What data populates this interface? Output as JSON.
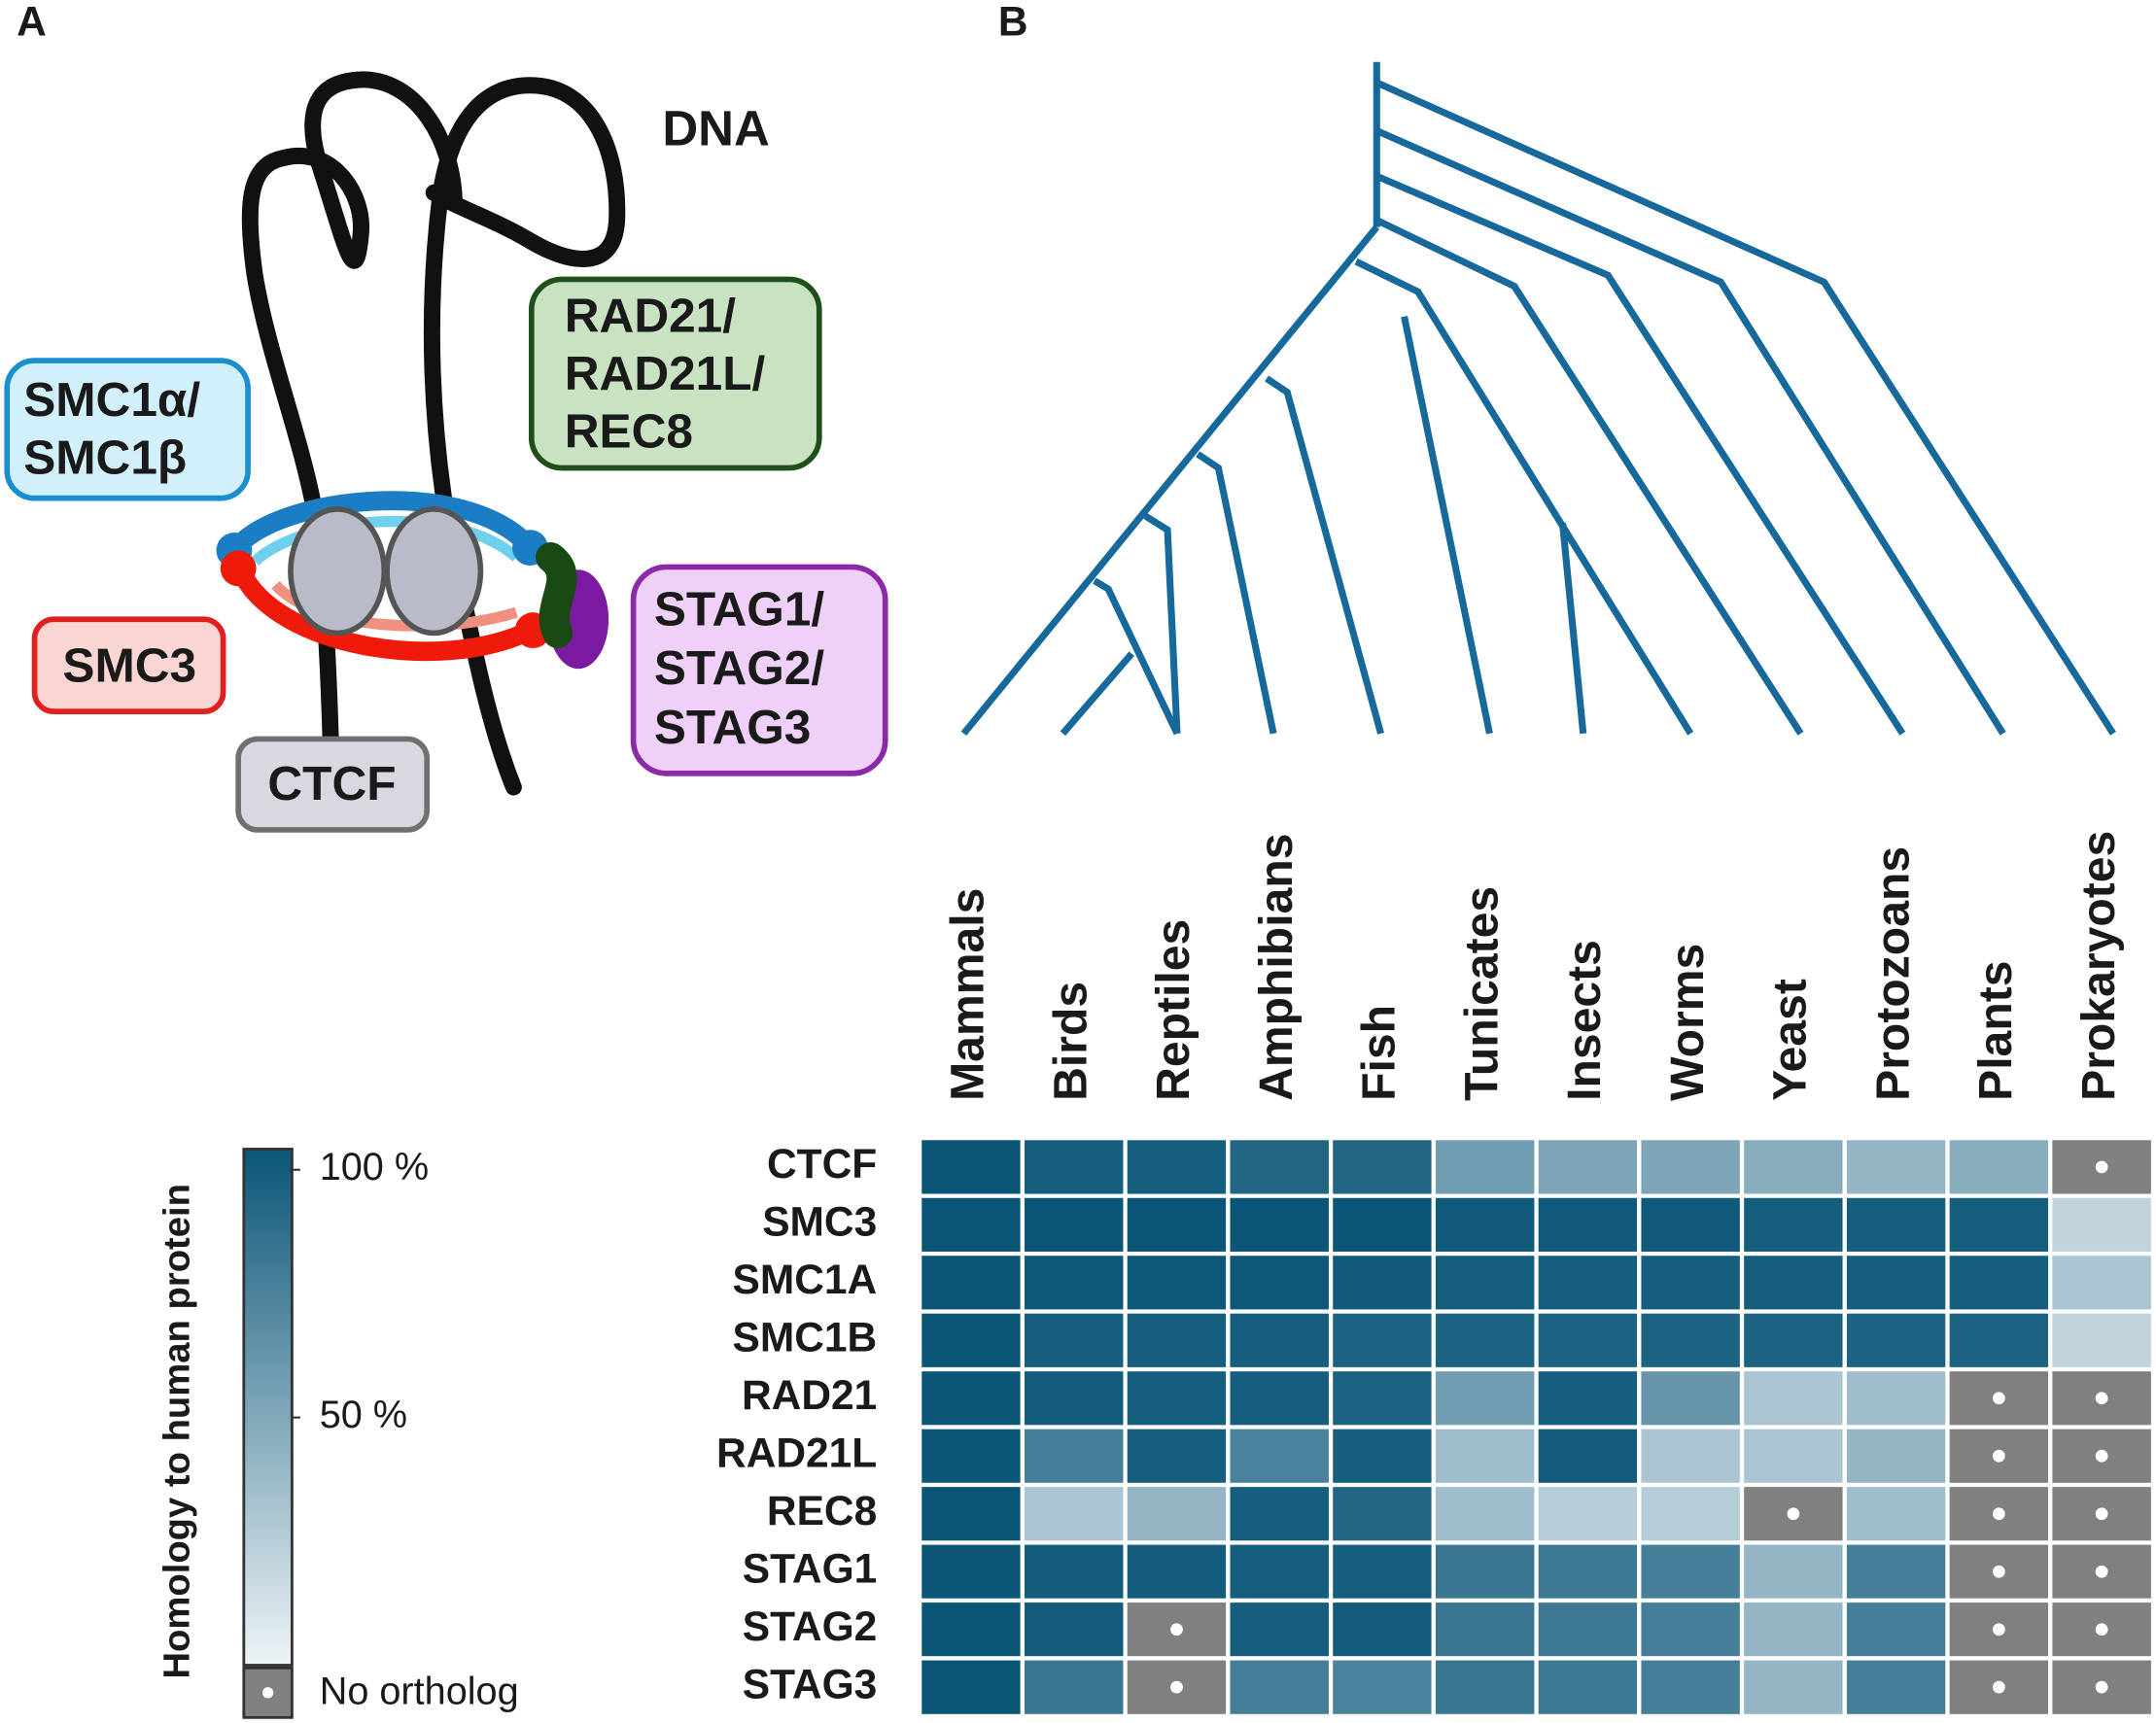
{
  "panel_labels": [
    "A",
    "B"
  ],
  "panel_a": {
    "dna": "DNA",
    "rad21": [
      "RAD21/",
      "RAD21L/",
      "REC8"
    ],
    "smc1": [
      "SMC1α/",
      "SMC1β"
    ],
    "smc3": "SMC3",
    "ctcf": "CTCF",
    "stag": [
      "STAG1/",
      "STAG2/",
      "STAG3"
    ]
  },
  "chart_data": {
    "type": "heatmap",
    "columns": [
      "Mammals",
      "Birds",
      "Reptiles",
      "Amphibians",
      "Fish",
      "Tunicates",
      "Insects",
      "Worms",
      "Yeast",
      "Protozoans",
      "Plants",
      "Prokaryotes"
    ],
    "rows": [
      "CTCF",
      "SMC3",
      "SMC1A",
      "SMC1B",
      "RAD21",
      "RAD21L",
      "REC8",
      "STAG1",
      "STAG2",
      "STAG3"
    ],
    "values": [
      [
        100,
        95,
        95,
        90,
        90,
        55,
        50,
        50,
        45,
        40,
        45,
        null
      ],
      [
        100,
        100,
        100,
        100,
        100,
        98,
        98,
        98,
        95,
        95,
        95,
        20
      ],
      [
        100,
        99,
        99,
        99,
        98,
        95,
        95,
        95,
        95,
        95,
        95,
        30
      ],
      [
        100,
        95,
        95,
        95,
        92,
        92,
        92,
        92,
        92,
        92,
        92,
        20
      ],
      [
        100,
        97,
        95,
        95,
        93,
        55,
        95,
        60,
        30,
        35,
        null,
        null
      ],
      [
        100,
        75,
        95,
        72,
        95,
        35,
        97,
        30,
        30,
        40,
        null,
        null
      ],
      [
        100,
        30,
        40,
        95,
        90,
        35,
        25,
        25,
        null,
        35,
        null,
        null
      ],
      [
        100,
        97,
        97,
        95,
        95,
        80,
        78,
        75,
        40,
        75,
        null,
        null
      ],
      [
        100,
        97,
        null,
        95,
        97,
        80,
        78,
        75,
        40,
        75,
        null,
        null
      ],
      [
        100,
        80,
        null,
        75,
        72,
        80,
        78,
        75,
        40,
        75,
        null,
        null
      ]
    ],
    "clim": [
      0,
      100
    ],
    "cticks": [
      {
        "value": 100,
        "label": "100 %"
      },
      {
        "value": 50,
        "label": "50 %"
      }
    ],
    "colorbar_label": "Homology to human protein",
    "null_label": "No ortholog",
    "color_low": "#eef4f7",
    "color_high": "#0b5677",
    "null_color": "#808080"
  }
}
